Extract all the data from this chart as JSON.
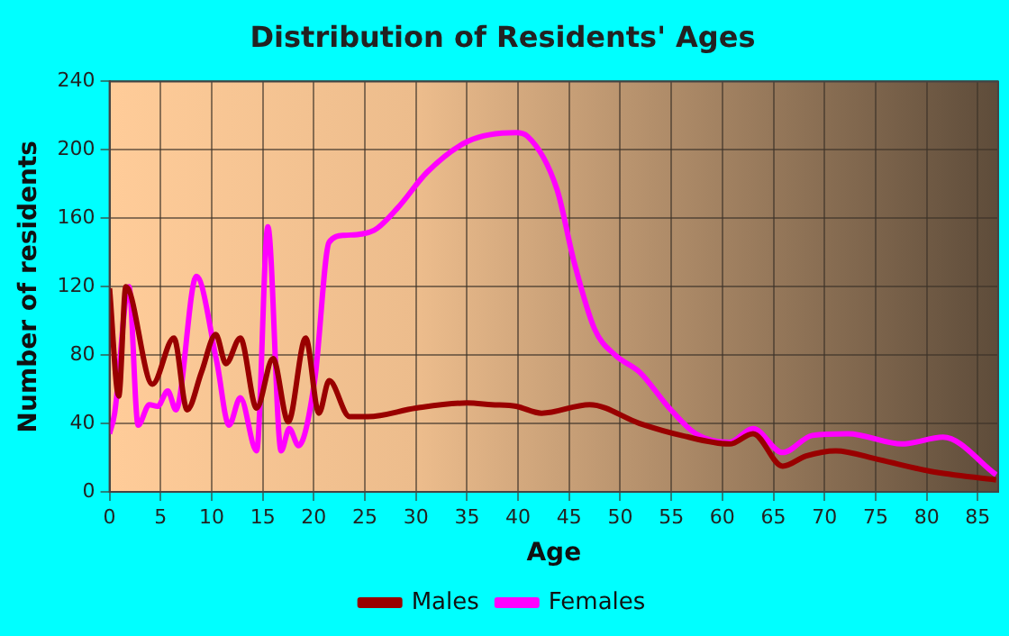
{
  "chart_data": {
    "type": "line",
    "title": "Distribution of Residents' Ages",
    "xlabel": "Age",
    "ylabel": "Number of residents",
    "xlim": [
      0,
      87
    ],
    "xticks": [
      0,
      5,
      10,
      15,
      20,
      25,
      30,
      35,
      40,
      45,
      50,
      55,
      60,
      65,
      70,
      75,
      80,
      85
    ],
    "ylim": [
      0,
      240
    ],
    "yticks": [
      0,
      40,
      80,
      120,
      160,
      200,
      240
    ],
    "grid": true,
    "legend": "bottom",
    "marker": "none",
    "line_style": "solid",
    "series": [
      {
        "name": "Males",
        "color": "#990000",
        "x": [
          0,
          0.9,
          1.6,
          4.2,
          6.3,
          7.6,
          9,
          10.4,
          11.4,
          12.8,
          14.4,
          16,
          17.5,
          19.2,
          20.5,
          21.5,
          23.5,
          25.3,
          30,
          35,
          37.4,
          39.8,
          42.3,
          47,
          51.9,
          56,
          60.7,
          63,
          65.9,
          68.2,
          71.1,
          75.2,
          80.4,
          86.8
        ],
        "values": [
          119,
          56,
          120,
          63,
          90,
          48,
          70,
          92,
          75,
          90,
          49,
          78,
          41,
          90,
          46,
          65,
          44,
          44,
          49,
          52,
          51,
          50,
          46,
          51,
          40,
          33,
          28,
          34,
          15,
          21,
          24,
          19,
          12,
          7
        ]
      },
      {
        "name": "Females",
        "color": "#ff00ff",
        "x": [
          0,
          0.5,
          1.9,
          2.8,
          3.9,
          4.7,
          5.7,
          6.5,
          8.5,
          10.5,
          11.7,
          12.8,
          14.4,
          15.5,
          16.8,
          17.6,
          18.5,
          20.1,
          21.5,
          23,
          25.9,
          28.2,
          31.1,
          35.1,
          39.8,
          40.9,
          43.8,
          45.5,
          47.5,
          49.5,
          51.9,
          54.8,
          57.4,
          60.7,
          63,
          65.9,
          68.8,
          72.3,
          77.6,
          81.6,
          86.8
        ],
        "values": [
          34,
          46,
          120,
          39,
          51,
          50,
          59,
          48,
          126,
          76,
          39,
          55,
          24,
          155,
          24,
          37,
          27,
          66,
          146,
          150,
          153,
          166,
          187,
          205,
          210,
          208,
          177,
          134,
          95,
          80,
          70,
          49,
          34,
          29,
          37,
          23,
          33,
          34,
          28,
          32,
          10
        ]
      }
    ]
  }
}
